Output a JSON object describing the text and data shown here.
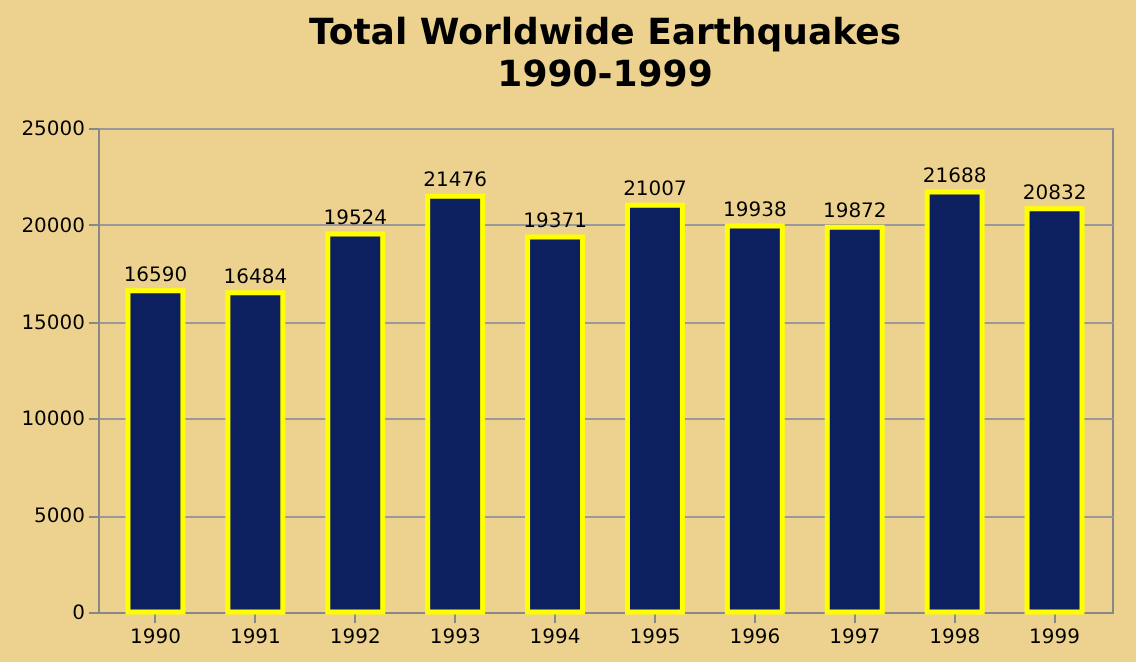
{
  "chart_data": {
    "type": "bar",
    "title": "Total Worldwide Earthquakes",
    "subtitle": "1990-1999",
    "categories": [
      "1990",
      "1991",
      "1992",
      "1993",
      "1994",
      "1995",
      "1996",
      "1997",
      "1998",
      "1999"
    ],
    "values": [
      16590,
      16484,
      19524,
      21476,
      19371,
      21007,
      19938,
      19872,
      21688,
      20832
    ],
    "color": "#0c1f5e",
    "ylim": [
      0,
      25000
    ],
    "yticks": [
      0,
      5000,
      10000,
      15000,
      20000,
      25000
    ],
    "grid": "y",
    "data_labels": true
  }
}
